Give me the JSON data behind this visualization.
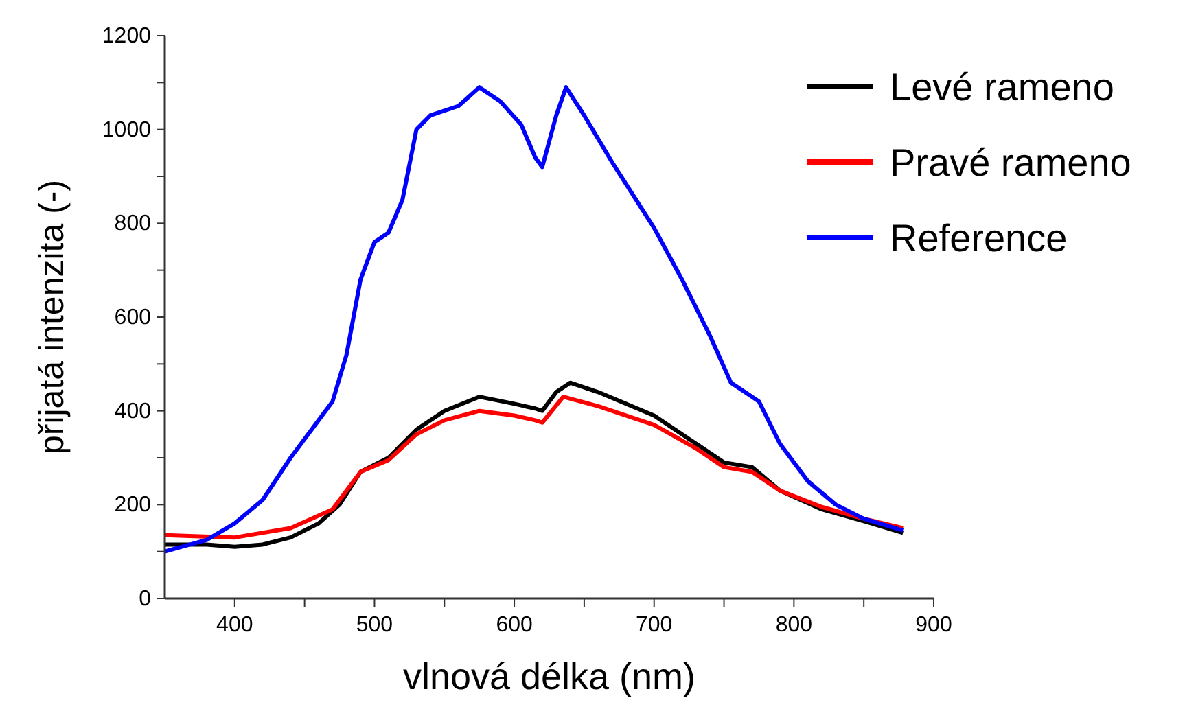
{
  "chart_data": {
    "type": "line",
    "xlabel": "vlnová délka (nm)",
    "ylabel": "přijatá intenzita (-)",
    "xlim": [
      350,
      900
    ],
    "ylim": [
      0,
      1200
    ],
    "xticks": [
      400,
      {
        "value": 450,
        "label": null
      },
      500,
      {
        "value": 550,
        "label": null
      },
      600,
      {
        "value": 650,
        "label": null
      },
      700,
      {
        "value": 750,
        "label": null
      },
      800,
      {
        "value": 850,
        "label": null
      },
      900
    ],
    "yticks": [
      0,
      {
        "value": 100,
        "label": null
      },
      200,
      {
        "value": 300,
        "label": null
      },
      400,
      {
        "value": 500,
        "label": null
      },
      600,
      {
        "value": 700,
        "label": null
      },
      800,
      {
        "value": 900,
        "label": null
      },
      1000,
      {
        "value": 1100,
        "label": null
      },
      1200
    ],
    "grid": false,
    "legend": "top right",
    "line_style": "solid",
    "marker": "none",
    "series": [
      {
        "name": "Levé rameno",
        "color": "#000000",
        "x": [
          350,
          380,
          400,
          420,
          440,
          460,
          475,
          490,
          510,
          530,
          550,
          575,
          600,
          615,
          620,
          630,
          640,
          660,
          700,
          730,
          750,
          770,
          790,
          820,
          850,
          878
        ],
        "values": [
          115,
          115,
          110,
          115,
          130,
          160,
          200,
          270,
          300,
          360,
          400,
          430,
          415,
          405,
          400,
          440,
          460,
          440,
          390,
          330,
          290,
          280,
          230,
          190,
          165,
          140
        ]
      },
      {
        "name": "Pravé rameno",
        "color": "#ff0000",
        "x": [
          350,
          400,
          440,
          470,
          490,
          510,
          530,
          550,
          575,
          600,
          615,
          620,
          635,
          660,
          700,
          730,
          750,
          770,
          790,
          820,
          850,
          878
        ],
        "values": [
          135,
          130,
          150,
          190,
          270,
          295,
          350,
          380,
          400,
          390,
          380,
          375,
          430,
          410,
          370,
          320,
          280,
          270,
          230,
          195,
          170,
          150
        ]
      },
      {
        "name": "Reference",
        "color": "#0000ff",
        "x": [
          350,
          380,
          400,
          420,
          440,
          460,
          470,
          480,
          490,
          500,
          510,
          520,
          530,
          540,
          560,
          575,
          590,
          605,
          615,
          620,
          630,
          637,
          650,
          670,
          700,
          720,
          740,
          755,
          765,
          775,
          790,
          810,
          830,
          850,
          878
        ],
        "values": [
          100,
          125,
          160,
          210,
          300,
          380,
          420,
          520,
          680,
          760,
          780,
          850,
          1000,
          1030,
          1050,
          1090,
          1060,
          1010,
          940,
          920,
          1030,
          1090,
          1030,
          930,
          790,
          680,
          560,
          460,
          440,
          420,
          330,
          250,
          200,
          170,
          145
        ]
      }
    ]
  }
}
